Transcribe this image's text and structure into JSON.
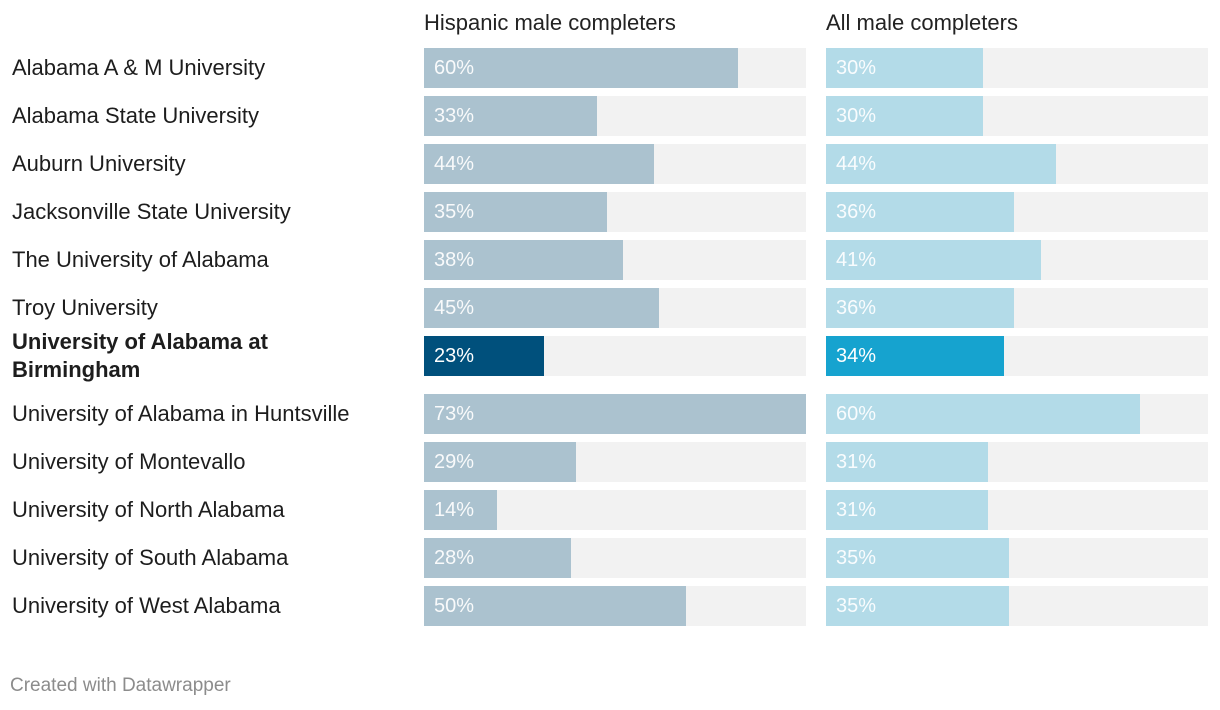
{
  "chart_data": {
    "type": "bar",
    "orientation": "horizontal",
    "categories": [
      "Alabama A & M University",
      "Alabama State University",
      "Auburn University",
      "Jacksonville State University",
      "The University of Alabama",
      "Troy University",
      "University of Alabama at Birmingham",
      "University of Alabama in Huntsville",
      "University of Montevallo",
      "University of North Alabama",
      "University of South Alabama",
      "University of West Alabama"
    ],
    "highlighted_category": "University of Alabama at Birmingham",
    "unit": "%",
    "xlim": [
      0,
      73
    ],
    "series": [
      {
        "name": "Hispanic male completers",
        "values": [
          60,
          33,
          44,
          35,
          38,
          45,
          23,
          73,
          29,
          14,
          28,
          50
        ],
        "color": "#abc2cf",
        "highlight_color": "#00507c"
      },
      {
        "name": "All male completers",
        "values": [
          30,
          30,
          44,
          36,
          41,
          36,
          34,
          60,
          31,
          31,
          35,
          35
        ],
        "color": "#b3dbe8",
        "highlight_color": "#16a3cf"
      }
    ]
  },
  "track_color": "#f2f2f2",
  "footer": {
    "credit": "Created with Datawrapper"
  }
}
